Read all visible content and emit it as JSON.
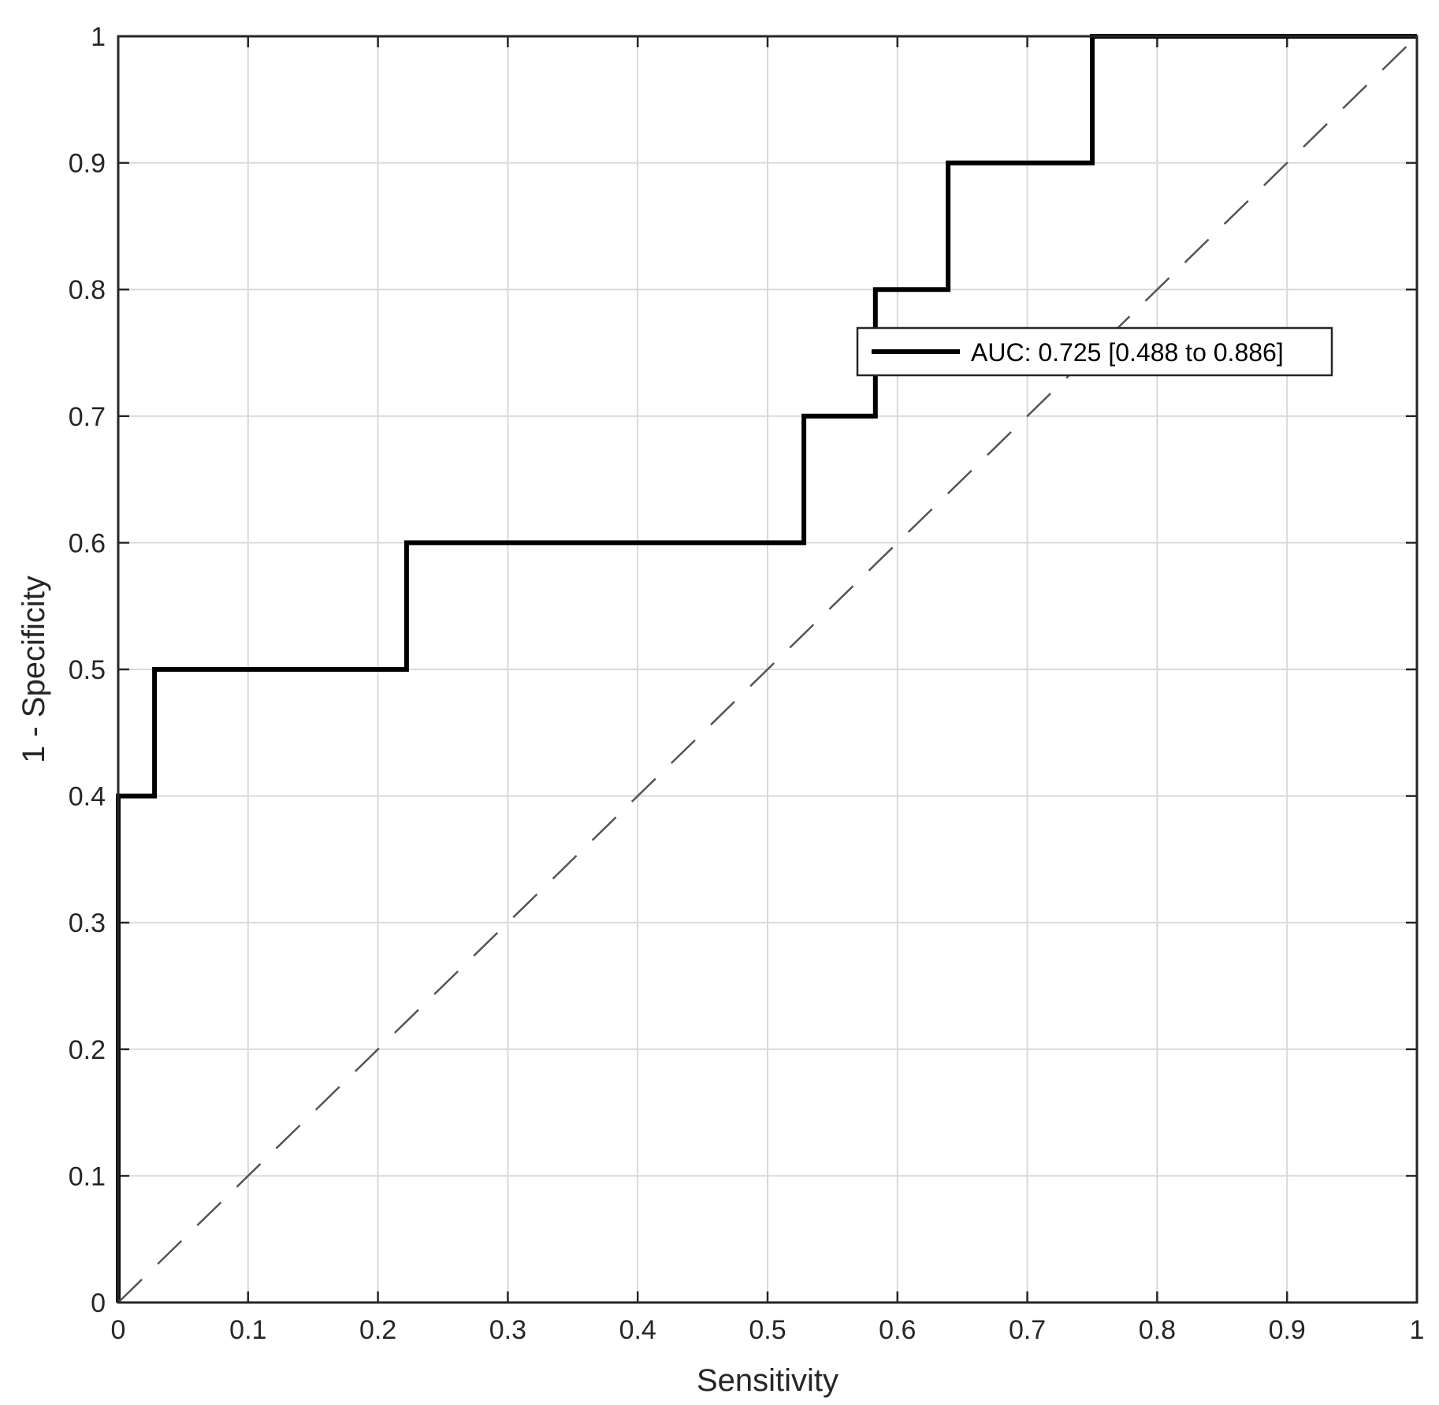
{
  "chart_data": {
    "type": "line",
    "xlabel": "Sensitivity",
    "ylabel": "1 - Specificity",
    "xlim": [
      0,
      1
    ],
    "ylim": [
      0,
      1
    ],
    "xticks": [
      "0",
      "0.1",
      "0.2",
      "0.3",
      "0.4",
      "0.5",
      "0.6",
      "0.7",
      "0.8",
      "0.9",
      "1"
    ],
    "yticks": [
      "0",
      "0.1",
      "0.2",
      "0.3",
      "0.4",
      "0.5",
      "0.6",
      "0.7",
      "0.8",
      "0.9",
      "1"
    ],
    "grid": true,
    "legend_position": "top-right",
    "series": [
      {
        "name": "AUC: 0.725 [0.488 to 0.886]",
        "style": "solid",
        "color": "#000000",
        "x": [
          0,
          0,
          0.028,
          0.028,
          0.222,
          0.222,
          0.528,
          0.528,
          0.583,
          0.583,
          0.639,
          0.639,
          0.75,
          0.75,
          1
        ],
        "y": [
          0,
          0.4,
          0.4,
          0.5,
          0.5,
          0.6,
          0.6,
          0.7,
          0.7,
          0.8,
          0.8,
          0.9,
          0.9,
          1,
          1
        ]
      },
      {
        "style": "dashed",
        "color": "#555555",
        "x": [
          0,
          1
        ],
        "y": [
          0,
          1
        ]
      }
    ]
  }
}
